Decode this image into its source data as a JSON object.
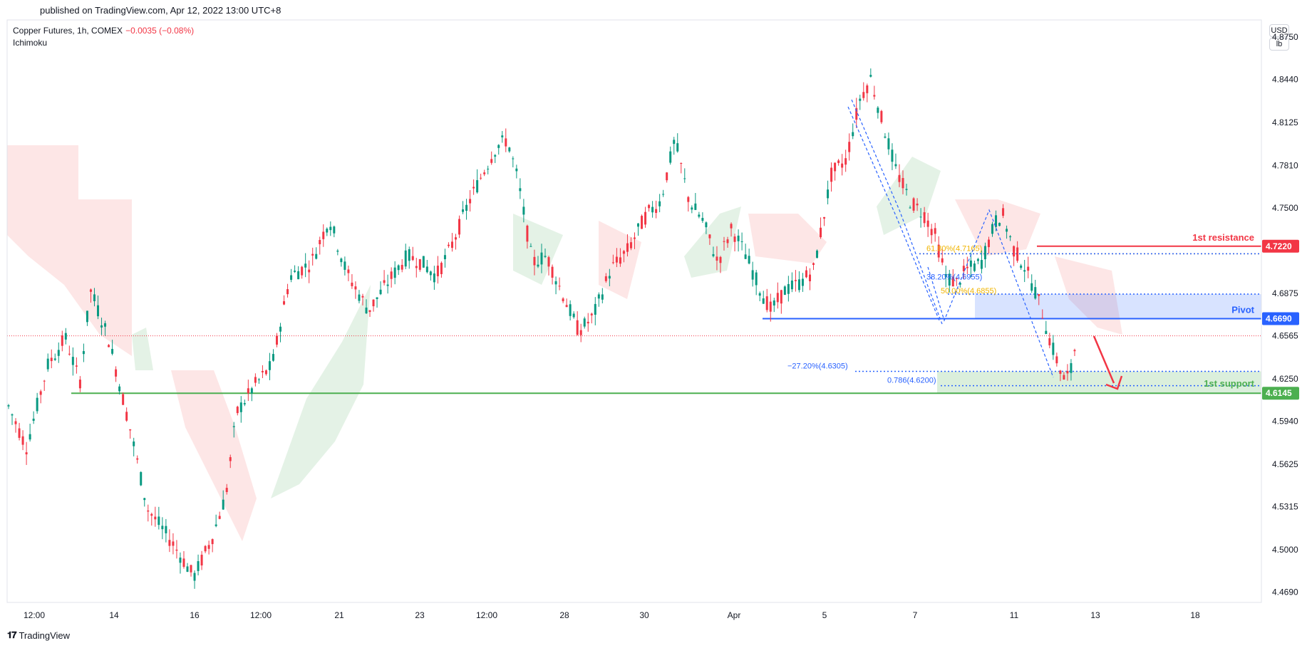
{
  "header": {
    "published": "published on TradingView.com, Apr 12, 2022 13:00 UTC+8",
    "symbol": "Copper Futures, 1h, COMEX",
    "change": "−0.0035 (−0.08%)",
    "indicator": "Ichimoku",
    "currency": "USD",
    "unit": "lb"
  },
  "footer": {
    "brand": "TradingView"
  },
  "chart_data": {
    "type": "candlestick",
    "y_range": [
      4.4615,
      4.8875
    ],
    "y_ticks": [
      4.875,
      4.844,
      4.8125,
      4.781,
      4.75,
      4.6875,
      4.6565,
      4.625,
      4.594,
      4.5625,
      4.5315,
      4.5,
      4.469
    ],
    "x_ticks": [
      "12:00",
      "14",
      "16",
      "12:00",
      "21",
      "23",
      "12:00",
      "28",
      "30",
      "Apr",
      "5",
      "7",
      "11",
      "13",
      "18"
    ],
    "levels": [
      {
        "label": "1st resistance",
        "value": 4.722,
        "color": "#f23645"
      },
      {
        "label": "Pivot",
        "value": 4.669,
        "color": "#2962ff"
      },
      {
        "label": "1st support",
        "value": 4.6145,
        "color": "#4caf50"
      }
    ],
    "last_price": 4.6565,
    "fib_labels": [
      {
        "text": "61.80%(4.7165)",
        "value": 4.7165
      },
      {
        "text": "38.20%(4.6955)",
        "value": 4.6955
      },
      {
        "text": "50.00%(4.6855)",
        "value": 4.6855
      },
      {
        "text": "−27.20%(4.6305)",
        "value": 4.6305
      },
      {
        "text": "0.786(4.6200)",
        "value": 4.62
      }
    ],
    "candles_source": [
      [
        0,
        4.605
      ],
      [
        25,
        4.575
      ],
      [
        55,
        4.635
      ],
      [
        80,
        4.655
      ],
      [
        100,
        4.622
      ],
      [
        115,
        4.69
      ],
      [
        140,
        4.655
      ],
      [
        170,
        4.59
      ],
      [
        195,
        4.53
      ],
      [
        230,
        4.505
      ],
      [
        260,
        4.48
      ],
      [
        285,
        4.508
      ],
      [
        305,
        4.54
      ],
      [
        320,
        4.6
      ],
      [
        345,
        4.62
      ],
      [
        370,
        4.635
      ],
      [
        395,
        4.7
      ],
      [
        425,
        4.71
      ],
      [
        450,
        4.742
      ],
      [
        475,
        4.702
      ],
      [
        505,
        4.675
      ],
      [
        525,
        4.69
      ],
      [
        545,
        4.705
      ],
      [
        560,
        4.715
      ],
      [
        580,
        4.71
      ],
      [
        600,
        4.7
      ],
      [
        620,
        4.72
      ],
      [
        645,
        4.753
      ],
      [
        665,
        4.775
      ],
      [
        685,
        4.795
      ],
      [
        700,
        4.8
      ],
      [
        715,
        4.77
      ],
      [
        735,
        4.71
      ],
      [
        755,
        4.715
      ],
      [
        775,
        4.69
      ],
      [
        800,
        4.66
      ],
      [
        820,
        4.67
      ],
      [
        845,
        4.705
      ],
      [
        870,
        4.72
      ],
      [
        895,
        4.745
      ],
      [
        915,
        4.755
      ],
      [
        935,
        4.8
      ],
      [
        955,
        4.755
      ],
      [
        975,
        4.74
      ],
      [
        995,
        4.71
      ],
      [
        1015,
        4.735
      ],
      [
        1035,
        4.715
      ],
      [
        1055,
        4.69
      ],
      [
        1070,
        4.675
      ],
      [
        1090,
        4.69
      ],
      [
        1110,
        4.695
      ],
      [
        1130,
        4.705
      ],
      [
        1155,
        4.775
      ],
      [
        1175,
        4.785
      ],
      [
        1195,
        4.83
      ],
      [
        1210,
        4.845
      ],
      [
        1225,
        4.815
      ],
      [
        1245,
        4.778
      ],
      [
        1265,
        4.755
      ],
      [
        1285,
        4.745
      ],
      [
        1300,
        4.73
      ],
      [
        1315,
        4.7
      ],
      [
        1330,
        4.695
      ],
      [
        1345,
        4.705
      ],
      [
        1365,
        4.71
      ],
      [
        1385,
        4.74
      ],
      [
        1395,
        4.745
      ],
      [
        1410,
        4.72
      ],
      [
        1425,
        4.708
      ],
      [
        1440,
        4.69
      ],
      [
        1450,
        4.675
      ],
      [
        1460,
        4.655
      ],
      [
        1470,
        4.64
      ],
      [
        1480,
        4.625
      ],
      [
        1490,
        4.628
      ],
      [
        1500,
        4.66
      ]
    ]
  }
}
